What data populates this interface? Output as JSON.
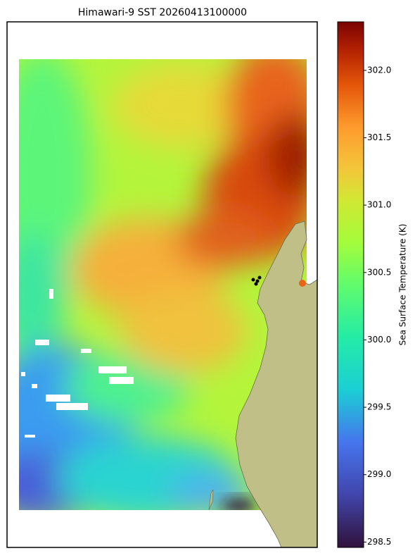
{
  "chart_data": {
    "type": "map",
    "title": "Himawari-9 SST 20260413100000",
    "colorbar_label": "Sea Surface Temperature (K)",
    "clim": [
      298.46,
      302.36
    ],
    "colorbar_ticks": [
      {
        "value": 298.5,
        "label": "298.5"
      },
      {
        "value": 299,
        "label": "299.0"
      },
      {
        "value": 299.5,
        "label": "299.5"
      },
      {
        "value": 300,
        "label": "300.0"
      },
      {
        "value": 300.5,
        "label": "300.5"
      },
      {
        "value": 301,
        "label": "301.0"
      },
      {
        "value": 301.5,
        "label": "301.5"
      },
      {
        "value": 302,
        "label": "302.0"
      }
    ]
  }
}
